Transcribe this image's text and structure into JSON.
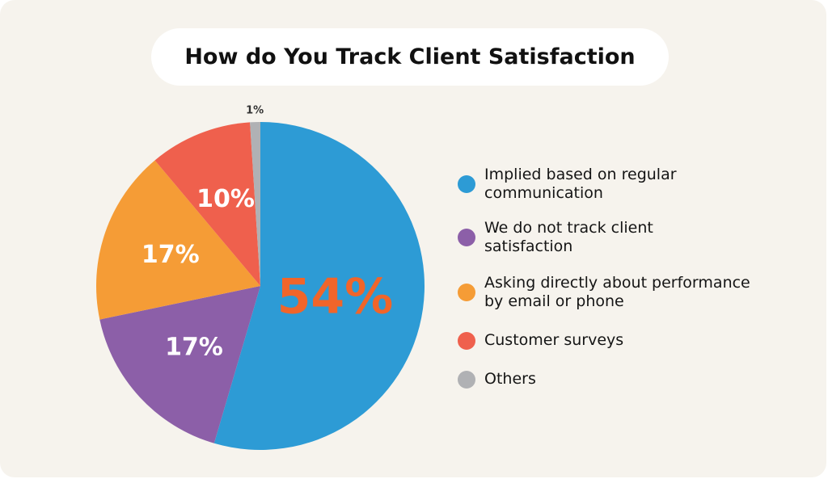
{
  "chart_data": {
    "type": "pie",
    "title": "How do You Track Client Satisfaction",
    "slices": [
      {
        "label": "Implied based on regular communication",
        "value": 54,
        "display": "54%",
        "color": "#2d9bd5",
        "label_color": "#f0652a"
      },
      {
        "label": "We do not track client satisfaction",
        "value": 17,
        "display": "17%",
        "color": "#8c5fa8",
        "label_color": "#ffffff"
      },
      {
        "label": "Asking directly about performance by email or phone",
        "value": 17,
        "display": "17%",
        "color": "#f59c36",
        "label_color": "#ffffff"
      },
      {
        "label": "Customer surveys",
        "value": 10,
        "display": "10%",
        "color": "#ef604d",
        "label_color": "#ffffff"
      },
      {
        "label": "Others",
        "value": 1,
        "display": "1%",
        "color": "#b0b1b4",
        "label_color": "#333333"
      }
    ],
    "legend_placement": "right"
  }
}
